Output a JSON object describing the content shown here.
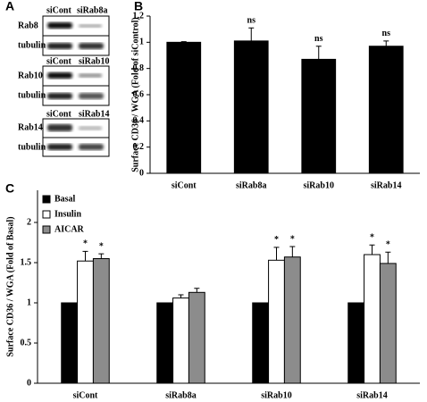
{
  "panels": [
    "A",
    "B",
    "C"
  ],
  "blots": [
    {
      "lanes": [
        "siCont",
        "siRab8a"
      ],
      "rows": [
        "Rab8",
        "tubulin"
      ]
    },
    {
      "lanes": [
        "siCont",
        "siRab10"
      ],
      "rows": [
        "Rab10",
        "tubulin"
      ]
    },
    {
      "lanes": [
        "siCont",
        "siRab14"
      ],
      "rows": [
        "Rab14",
        "tubulin"
      ]
    }
  ],
  "chart_data": [
    {
      "type": "bar",
      "y_label": "Surface CD36 / WGA (Fold of siControl)",
      "categories": [
        "siCont",
        "siRab8a",
        "siRab10",
        "siRab14"
      ],
      "values": [
        1.0,
        1.01,
        0.87,
        0.97
      ],
      "errors": [
        0.005,
        0.1,
        0.1,
        0.04
      ],
      "annotations": [
        null,
        "ns",
        "ns",
        "ns"
      ],
      "color": "#000000",
      "ylim": [
        0,
        1.2
      ],
      "yticks": [
        0,
        0.2,
        0.4,
        0.6,
        0.8,
        1,
        1.2
      ]
    },
    {
      "type": "bar",
      "y_label": "Surface CD36 / WGA (Fold of Basal)",
      "categories": [
        "siCont",
        "siRab8a",
        "siRab10",
        "siRab14"
      ],
      "series": [
        {
          "name": "Basal",
          "color": "#000000",
          "values": [
            1,
            1,
            1,
            1
          ]
        },
        {
          "name": "Insulin",
          "color": "#ffffff",
          "values": [
            1.52,
            1.06,
            1.53,
            1.6
          ],
          "errors": [
            0.12,
            0.04,
            0.16,
            0.12
          ],
          "annotations": [
            "*",
            null,
            "*",
            "*"
          ]
        },
        {
          "name": "AICAR",
          "color": "#8c8c8c",
          "values": [
            1.55,
            1.13,
            1.57,
            1.49
          ],
          "errors": [
            0.06,
            0.05,
            0.13,
            0.14
          ],
          "annotations": [
            "*",
            null,
            "*",
            "*"
          ]
        }
      ],
      "legend": "upper left",
      "ylim": [
        0,
        2.4
      ],
      "yticks": [
        0,
        0.5,
        1,
        1.5,
        2
      ]
    }
  ]
}
